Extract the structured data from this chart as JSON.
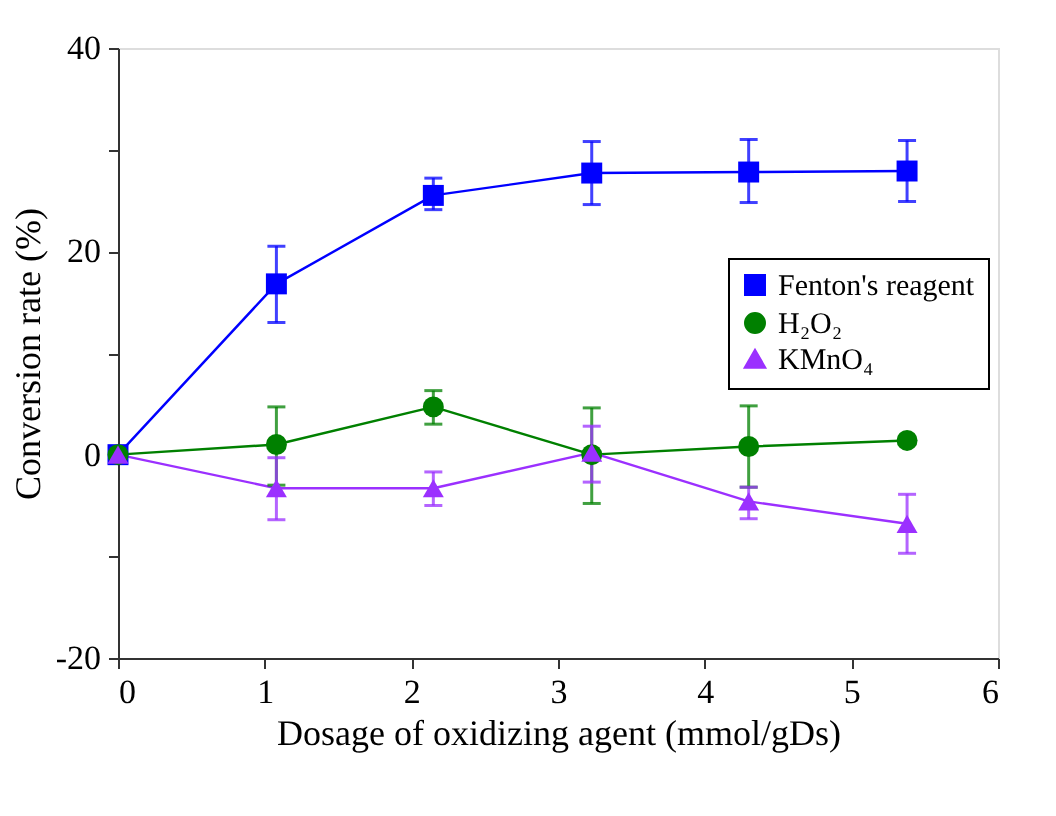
{
  "chart_data": {
    "type": "line",
    "xlabel": "Dosage of oxidizing agent (mmol/gDs)",
    "ylabel": "Conversion rate (%)",
    "x": [
      0,
      1.08,
      2.15,
      3.23,
      4.3,
      5.38
    ],
    "xlim": [
      0,
      6
    ],
    "xticks": [
      0,
      1,
      2,
      3,
      4,
      5,
      6
    ],
    "ylim": [
      -20,
      40
    ],
    "yticks": [
      -20,
      {
        "value": -10,
        "label": null
      },
      0,
      {
        "value": 10,
        "label": null
      },
      20,
      {
        "value": 30,
        "label": null
      },
      40
    ],
    "legend": "right",
    "series": [
      {
        "name": "Fenton's reagent",
        "color": "#0000ff",
        "marker": "square",
        "values": [
          0,
          16.8,
          25.5,
          27.7,
          27.8,
          27.9
        ],
        "errors": [
          null,
          [
            13.0,
            20.5
          ],
          [
            24.1,
            27.2
          ],
          [
            24.6,
            30.8
          ],
          [
            24.8,
            31.0
          ],
          [
            24.9,
            30.9
          ]
        ]
      },
      {
        "name": "H₂O₂",
        "color": "#008000",
        "marker": "circle",
        "values": [
          0,
          1.0,
          4.7,
          0,
          0.8,
          1.4
        ],
        "errors": [
          null,
          [
            -3.0,
            4.7
          ],
          [
            3.0,
            6.3
          ],
          [
            -4.8,
            4.6
          ],
          [
            -3.2,
            4.8
          ],
          null
        ]
      },
      {
        "name": "KMnO₄",
        "color": "#9b30ff",
        "marker": "triangle",
        "values": [
          0,
          -3.3,
          -3.3,
          0.2,
          -4.6,
          -6.8
        ],
        "errors": [
          null,
          [
            -6.4,
            -0.3
          ],
          [
            -5.0,
            -1.7
          ],
          [
            -2.7,
            2.8
          ],
          [
            -6.3,
            -3.2
          ],
          [
            -9.7,
            -3.9
          ]
        ]
      }
    ]
  }
}
